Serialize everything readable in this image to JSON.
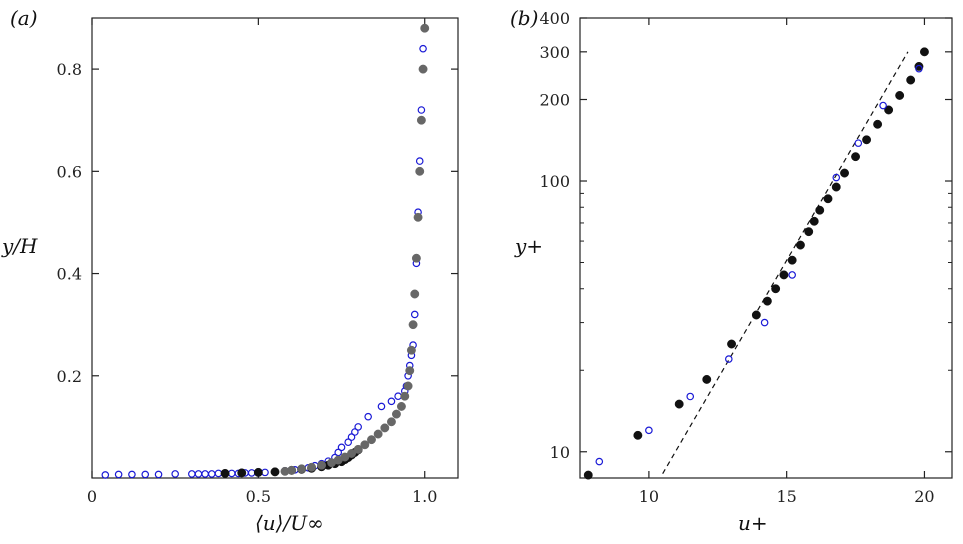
{
  "chart_data": [
    {
      "panel": "(a)",
      "type": "scatter",
      "xlabel": "⟨u⟩/U∞",
      "ylabel": "y/H",
      "xlim": [
        0.0,
        1.1
      ],
      "ylim": [
        0.0,
        0.9
      ],
      "xticks": [
        0,
        0.5,
        1.0
      ],
      "xtick_labels": [
        "0",
        "0.5",
        "1.0"
      ],
      "yticks": [
        0.2,
        0.4,
        0.6,
        0.8
      ],
      "ytick_labels": [
        "0.2",
        "0.4",
        "0.6",
        "0.8"
      ],
      "series": [
        {
          "name": "open-blue",
          "marker": "open-circle",
          "color": "#1a1ad6",
          "x": [
            0.04,
            0.08,
            0.12,
            0.16,
            0.2,
            0.25,
            0.3,
            0.32,
            0.34,
            0.36,
            0.38,
            0.4,
            0.42,
            0.44,
            0.46,
            0.48,
            0.5,
            0.52,
            0.55,
            0.58,
            0.61,
            0.63,
            0.65,
            0.67,
            0.69,
            0.71,
            0.73,
            0.74,
            0.75,
            0.77,
            0.78,
            0.79,
            0.8,
            0.83,
            0.87,
            0.9,
            0.92,
            0.94,
            0.945,
            0.95,
            0.955,
            0.96,
            0.965,
            0.97,
            0.975,
            0.98,
            0.985,
            0.99,
            0.995
          ],
          "y": [
            0.006,
            0.007,
            0.007,
            0.007,
            0.007,
            0.008,
            0.008,
            0.008,
            0.008,
            0.008,
            0.009,
            0.009,
            0.009,
            0.009,
            0.01,
            0.01,
            0.01,
            0.011,
            0.012,
            0.014,
            0.016,
            0.018,
            0.02,
            0.024,
            0.028,
            0.033,
            0.04,
            0.05,
            0.06,
            0.07,
            0.08,
            0.09,
            0.1,
            0.12,
            0.14,
            0.15,
            0.16,
            0.17,
            0.18,
            0.2,
            0.22,
            0.24,
            0.26,
            0.32,
            0.42,
            0.52,
            0.62,
            0.72,
            0.84
          ]
        },
        {
          "name": "filled-black",
          "marker": "filled-circle",
          "color": "#111111",
          "x": [
            0.4,
            0.45,
            0.5,
            0.55,
            0.6,
            0.63,
            0.66,
            0.69,
            0.71,
            0.73,
            0.75,
            0.76,
            0.77,
            0.78,
            0.79,
            0.8
          ],
          "y": [
            0.009,
            0.01,
            0.011,
            0.012,
            0.015,
            0.017,
            0.019,
            0.022,
            0.025,
            0.028,
            0.032,
            0.036,
            0.04,
            0.045,
            0.05,
            0.055
          ]
        },
        {
          "name": "filled-gray",
          "marker": "filled-circle",
          "color": "#676767",
          "x": [
            0.58,
            0.6,
            0.63,
            0.66,
            0.69,
            0.72,
            0.74,
            0.76,
            0.78,
            0.8,
            0.82,
            0.84,
            0.86,
            0.88,
            0.9,
            0.915,
            0.93,
            0.94,
            0.95,
            0.955,
            0.96,
            0.965,
            0.97,
            0.975,
            0.98,
            0.985,
            0.99,
            0.995,
            1.0
          ],
          "y": [
            0.013,
            0.015,
            0.018,
            0.021,
            0.025,
            0.03,
            0.035,
            0.041,
            0.048,
            0.056,
            0.065,
            0.075,
            0.086,
            0.098,
            0.11,
            0.125,
            0.14,
            0.16,
            0.18,
            0.21,
            0.25,
            0.3,
            0.36,
            0.43,
            0.51,
            0.6,
            0.7,
            0.8,
            0.88
          ]
        }
      ]
    },
    {
      "panel": "(b)",
      "type": "scatter",
      "xlabel": "u+",
      "ylabel": "y+",
      "yscale": "log",
      "xlim": [
        7.5,
        21
      ],
      "ylim": [
        8,
        400
      ],
      "xticks": [
        10,
        15,
        20
      ],
      "xtick_labels": [
        "10",
        "15",
        "20"
      ],
      "yticks": [
        10,
        100,
        200,
        300,
        400
      ],
      "ytick_labels": [
        "10",
        "100",
        "200",
        "300",
        "400"
      ],
      "reference_line": {
        "style": "dashed",
        "x": [
          10.5,
          19.4
        ],
        "y": [
          8.3,
          300
        ]
      },
      "series": [
        {
          "name": "filled-black",
          "marker": "filled-circle",
          "color": "#111111",
          "x": [
            7.8,
            9.6,
            11.1,
            12.1,
            13.0,
            13.9,
            14.3,
            14.6,
            14.9,
            15.2,
            15.5,
            15.8,
            16.0,
            16.2,
            16.5,
            16.8,
            17.1,
            17.5,
            17.9,
            18.3,
            18.7,
            19.1,
            19.5,
            19.8,
            20.0
          ],
          "y": [
            8.2,
            11.5,
            15,
            18.5,
            25,
            32,
            36,
            40,
            45,
            51,
            58,
            65,
            71,
            78,
            86,
            95,
            107,
            123,
            142,
            162,
            183,
            207,
            236,
            265,
            300
          ]
        },
        {
          "name": "open-blue",
          "marker": "open-circle",
          "color": "#1a1ad6",
          "x": [
            8.2,
            10.0,
            11.5,
            12.9,
            14.2,
            15.2,
            16.8,
            17.6,
            18.5,
            19.8
          ],
          "y": [
            9.2,
            12,
            16,
            22,
            30,
            45,
            103,
            138,
            190,
            260
          ]
        }
      ]
    }
  ]
}
